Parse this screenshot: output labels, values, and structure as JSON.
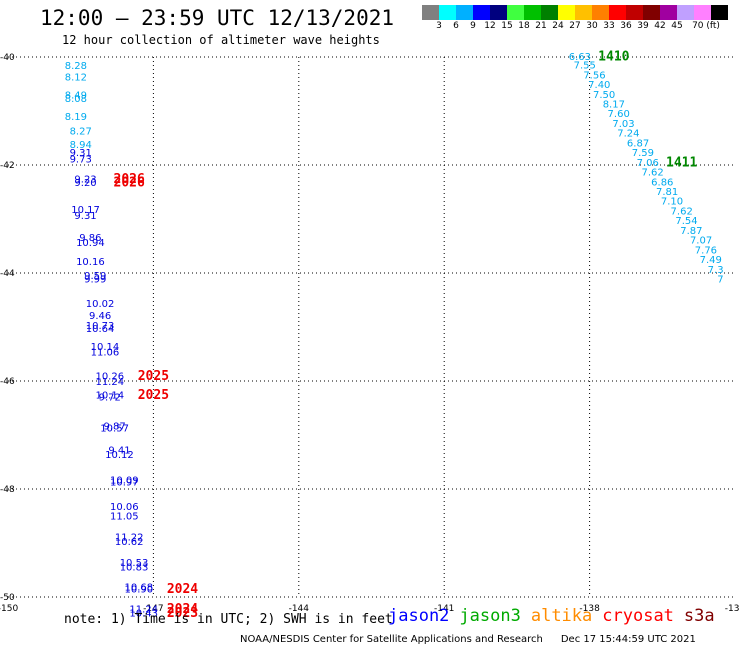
{
  "header": {
    "title": "12:00 – 23:59 UTC 12/13/2021",
    "subtitle": "12 hour collection of altimeter wave heights"
  },
  "legend": {
    "colors": [
      "#808080",
      "#00ffff",
      "#00b0ff",
      "#0000ff",
      "#00007f",
      "#40ff40",
      "#00c000",
      "#008000",
      "#ffff00",
      "#ffc000",
      "#ff8000",
      "#ff0000",
      "#c00000",
      "#800000",
      "#a000a0",
      "#c0a0ff",
      "#ff80ff",
      "#000000"
    ],
    "labels": [
      "3",
      "6",
      "9",
      "12",
      "15",
      "18",
      "21",
      "24",
      "27",
      "30",
      "33",
      "36",
      "39",
      "42",
      "45",
      "70 (ft)"
    ]
  },
  "footer": {
    "note": "note: 1) Time is in UTC; 2) SWH is in feet",
    "satellites": [
      {
        "name": "jason2",
        "color": "#0000ff"
      },
      {
        "name": "jason3",
        "color": "#00aa00"
      },
      {
        "name": "altika",
        "color": "#ff8c00"
      },
      {
        "name": "cryosat",
        "color": "#ff0000"
      },
      {
        "name": "s3a",
        "color": "#800000"
      }
    ],
    "credit": "NOAA/NESDIS Center for Satellite Applications and Research",
    "timestamp": "Dec 17 15:44:59 UTC 2021"
  },
  "chart_data": {
    "type": "scatter",
    "title": "12:00 – 23:59 UTC 12/13/2021",
    "subtitle": "12 hour collection of altimeter wave heights",
    "xlim": [
      -150,
      -135
    ],
    "ylim": [
      -50,
      -40
    ],
    "x_ticks": [
      "-150",
      "-147",
      "-144",
      "-141",
      "-138",
      "-135"
    ],
    "y_ticks": [
      "-40",
      "-42",
      "-44",
      "-46",
      "-48",
      "-50"
    ],
    "grid": true,
    "unit": "ft",
    "tracks": [
      {
        "satellite": "jason2",
        "color": "#00aaee",
        "points": [
          {
            "x": -148.6,
            "y": -40.17,
            "label": "8.28"
          },
          {
            "x": -148.6,
            "y": -40.38,
            "label": "8.12"
          },
          {
            "x": -148.6,
            "y": -40.71,
            "label": "8.49"
          },
          {
            "x": -148.6,
            "y": -40.78,
            "label": "8.08"
          },
          {
            "x": -148.6,
            "y": -41.11,
            "label": "8.19"
          },
          {
            "x": -148.5,
            "y": -41.38,
            "label": "8.27"
          },
          {
            "x": -148.5,
            "y": -41.63,
            "label": "8.94"
          }
        ]
      },
      {
        "satellite": "jason2",
        "color": "#0000dd",
        "points": [
          {
            "x": -148.5,
            "y": -41.78,
            "label": "9.31"
          },
          {
            "x": -148.5,
            "y": -41.9,
            "label": "9.73"
          },
          {
            "x": -148.4,
            "y": -42.27,
            "label": "9.23"
          },
          {
            "x": -148.4,
            "y": -42.33,
            "label": "9.20"
          },
          {
            "x": -148.4,
            "y": -42.83,
            "label": "10.17"
          },
          {
            "x": -148.4,
            "y": -42.94,
            "label": "9.31"
          },
          {
            "x": -148.3,
            "y": -43.35,
            "label": "9.86"
          },
          {
            "x": -148.3,
            "y": -43.44,
            "label": "10.94"
          },
          {
            "x": -148.3,
            "y": -43.8,
            "label": "10.16"
          },
          {
            "x": -148.2,
            "y": -44.06,
            "label": "9.59"
          },
          {
            "x": -148.2,
            "y": -44.12,
            "label": "9.99"
          },
          {
            "x": -148.1,
            "y": -44.57,
            "label": "10.02"
          },
          {
            "x": -148.1,
            "y": -44.8,
            "label": "9.46"
          },
          {
            "x": -148.1,
            "y": -44.98,
            "label": "10.73"
          },
          {
            "x": -148.1,
            "y": -45.04,
            "label": "10.64"
          },
          {
            "x": -148.0,
            "y": -45.37,
            "label": "10.14"
          },
          {
            "x": -148.0,
            "y": -45.47,
            "label": "11.06"
          },
          {
            "x": -147.9,
            "y": -45.92,
            "label": "10.26"
          },
          {
            "x": -147.9,
            "y": -46.02,
            "label": "11.24"
          },
          {
            "x": -147.9,
            "y": -46.27,
            "label": "10.14"
          },
          {
            "x": -147.9,
            "y": -46.31,
            "label": "9.72"
          },
          {
            "x": -147.8,
            "y": -46.84,
            "label": "9.87"
          },
          {
            "x": -147.8,
            "y": -46.88,
            "label": "10.57"
          },
          {
            "x": -147.7,
            "y": -47.29,
            "label": "9.41"
          },
          {
            "x": -147.7,
            "y": -47.37,
            "label": "10.12"
          },
          {
            "x": -147.6,
            "y": -47.84,
            "label": "10.09"
          },
          {
            "x": -147.6,
            "y": -47.88,
            "label": "10.97"
          },
          {
            "x": -147.6,
            "y": -48.33,
            "label": "10.06"
          },
          {
            "x": -147.6,
            "y": -48.51,
            "label": "11.05"
          },
          {
            "x": -147.5,
            "y": -48.9,
            "label": "11.22"
          },
          {
            "x": -147.5,
            "y": -48.98,
            "label": "10.62"
          },
          {
            "x": -147.4,
            "y": -49.37,
            "label": "10.53"
          },
          {
            "x": -147.4,
            "y": -49.45,
            "label": "10.83"
          },
          {
            "x": -147.3,
            "y": -49.82,
            "label": "10.68"
          },
          {
            "x": -147.3,
            "y": -49.86,
            "label": "10.90"
          },
          {
            "x": -147.2,
            "y": -50.23,
            "label": "11.24"
          },
          {
            "x": -147.2,
            "y": -50.31,
            "label": "10.43"
          }
        ]
      },
      {
        "satellite": "cryosat",
        "color": "#ee0000",
        "kind": "time_labels",
        "points": [
          {
            "x": -147.5,
            "y": -42.27,
            "label": "2026"
          },
          {
            "x": -147.5,
            "y": -42.33,
            "label": "2026"
          },
          {
            "x": -147.0,
            "y": -45.92,
            "label": "2025"
          },
          {
            "x": -147.0,
            "y": -46.27,
            "label": "2025"
          },
          {
            "x": -146.4,
            "y": -49.86,
            "label": "2024"
          },
          {
            "x": -146.4,
            "y": -50.23,
            "label": "2024"
          },
          {
            "x": -146.4,
            "y": -50.31,
            "label": "2023"
          }
        ]
      },
      {
        "satellite": "jason3",
        "color": "#00aaee",
        "points": [
          {
            "x": -138.2,
            "y": -40.0,
            "label": "6.63"
          },
          {
            "x": -138.1,
            "y": -40.16,
            "label": "7.55"
          },
          {
            "x": -137.9,
            "y": -40.34,
            "label": "7.56"
          },
          {
            "x": -137.8,
            "y": -40.52,
            "label": "7.40"
          },
          {
            "x": -137.7,
            "y": -40.7,
            "label": "7.50"
          },
          {
            "x": -137.5,
            "y": -40.88,
            "label": "8.17"
          },
          {
            "x": -137.4,
            "y": -41.06,
            "label": "7.60"
          },
          {
            "x": -137.3,
            "y": -41.24,
            "label": "7.03"
          },
          {
            "x": -137.2,
            "y": -41.42,
            "label": "7.24"
          },
          {
            "x": -137.0,
            "y": -41.6,
            "label": "6.87"
          },
          {
            "x": -136.9,
            "y": -41.78,
            "label": "7.59"
          },
          {
            "x": -136.8,
            "y": -41.96,
            "label": "7.06"
          },
          {
            "x": -136.7,
            "y": -42.14,
            "label": "7.62"
          },
          {
            "x": -136.5,
            "y": -42.32,
            "label": "6.86"
          },
          {
            "x": -136.4,
            "y": -42.5,
            "label": "7.81"
          },
          {
            "x": -136.3,
            "y": -42.68,
            "label": "7.10"
          },
          {
            "x": -136.1,
            "y": -42.86,
            "label": "7.62"
          },
          {
            "x": -136.0,
            "y": -43.04,
            "label": "7.54"
          },
          {
            "x": -135.9,
            "y": -43.22,
            "label": "7.87"
          },
          {
            "x": -135.7,
            "y": -43.4,
            "label": "7.07"
          },
          {
            "x": -135.6,
            "y": -43.58,
            "label": "7.76"
          },
          {
            "x": -135.5,
            "y": -43.76,
            "label": "7.49"
          },
          {
            "x": -135.4,
            "y": -43.94,
            "label": "7.3"
          },
          {
            "x": -135.3,
            "y": -44.12,
            "label": "7"
          }
        ]
      },
      {
        "satellite": "jason3",
        "color": "#008800",
        "kind": "time_labels",
        "points": [
          {
            "x": -137.5,
            "y": -40.0,
            "label": "1410"
          },
          {
            "x": -136.1,
            "y": -41.96,
            "label": "1411"
          }
        ]
      }
    ]
  }
}
